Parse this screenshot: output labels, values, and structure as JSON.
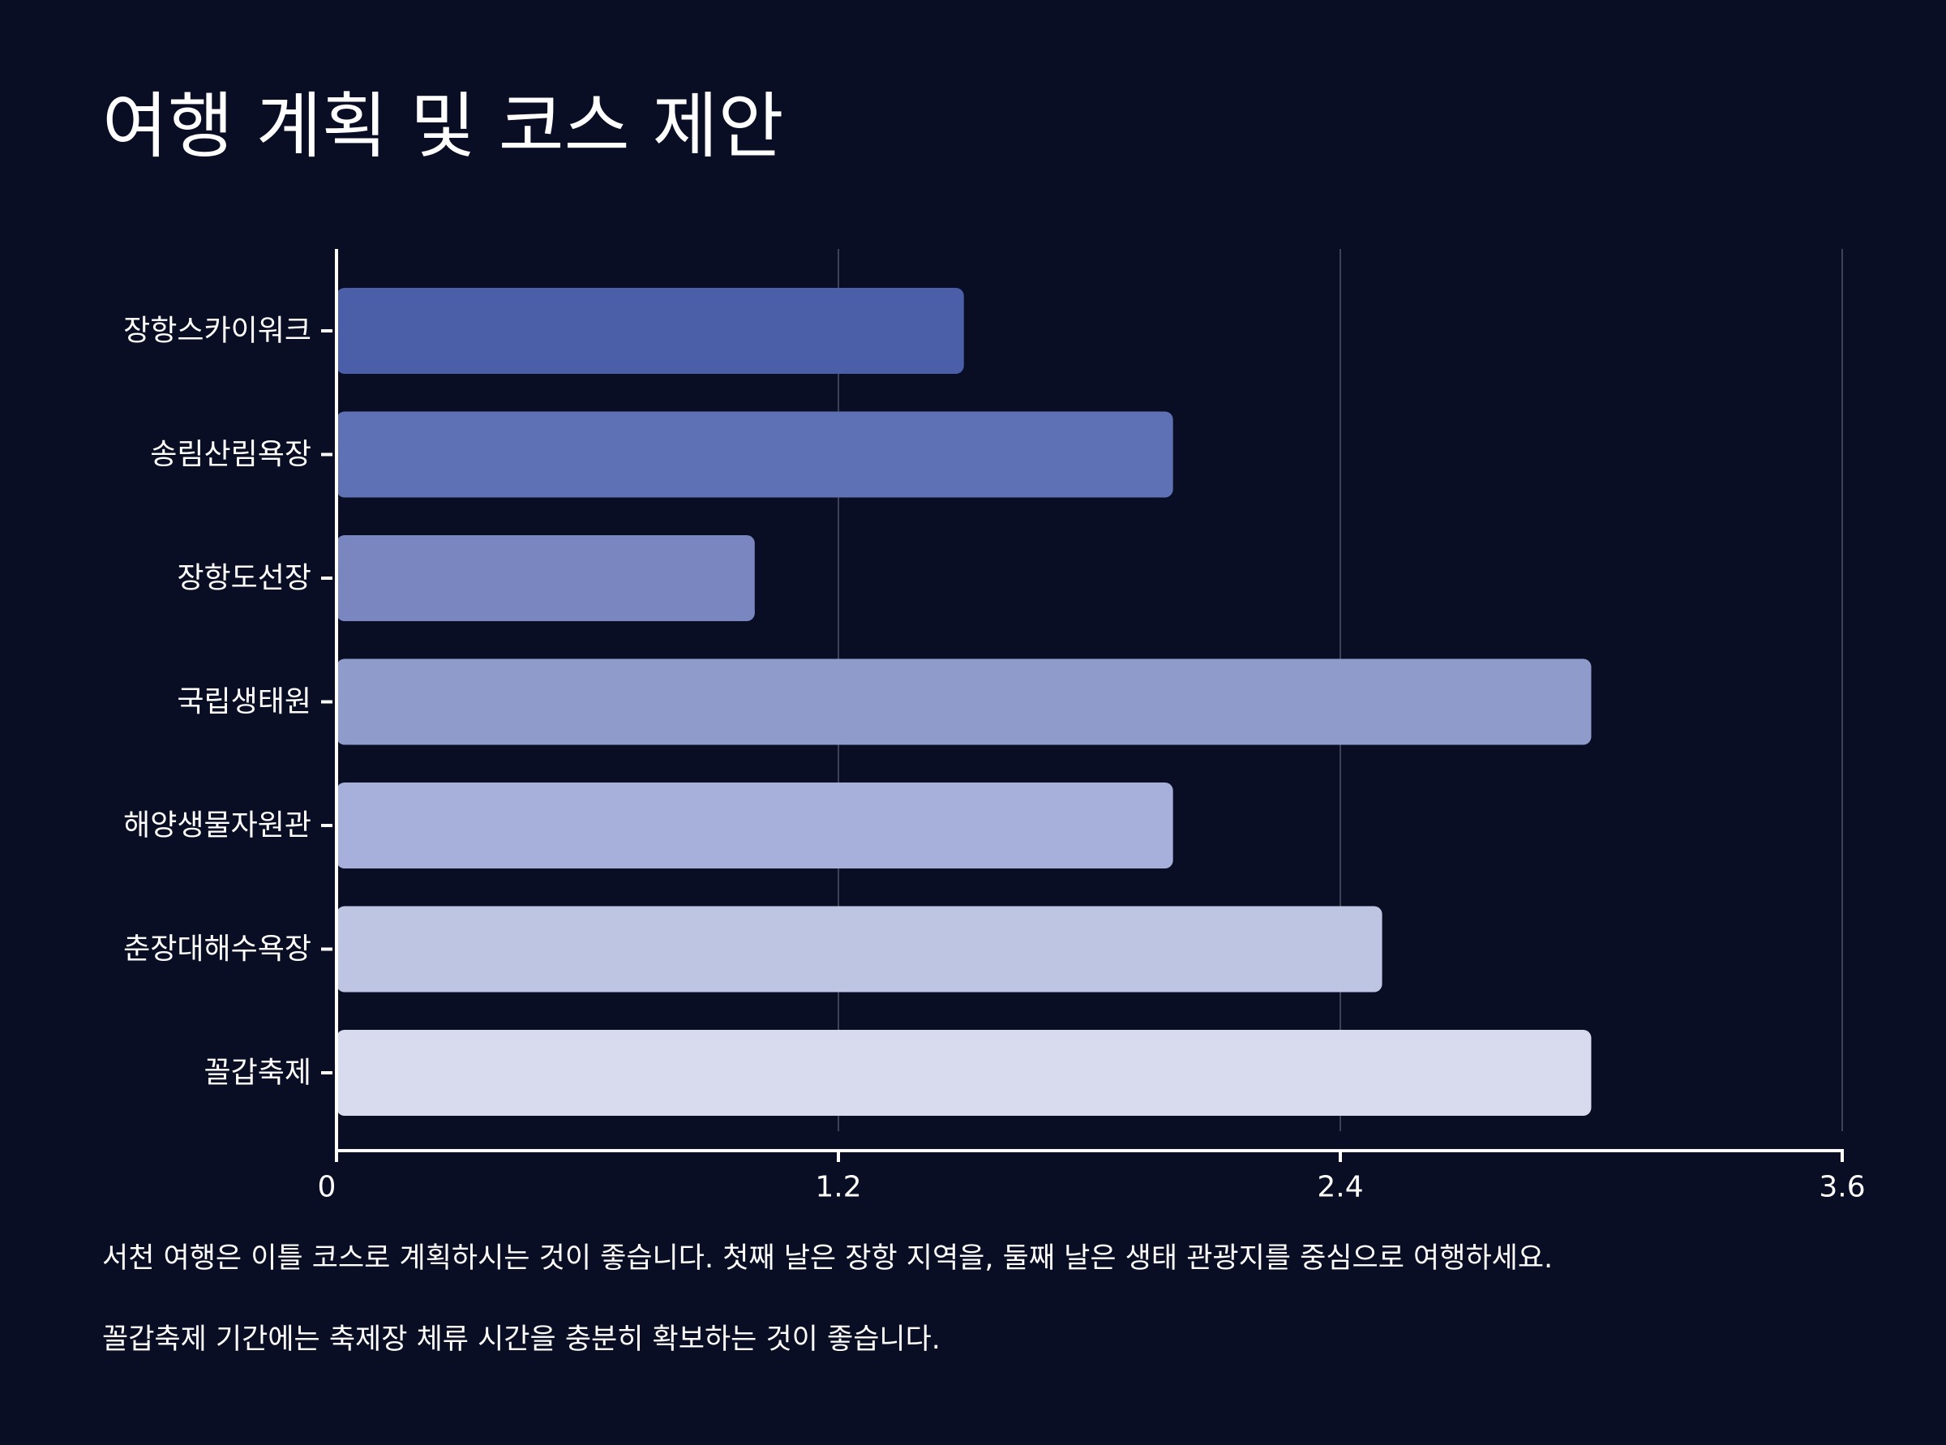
{
  "title": "여행 계획 및 코스 제안",
  "notes": [
    "서천 여행은 이틀 코스로 계획하시는 것이 좋습니다. 첫째 날은 장항 지역을, 둘째 날은 생태 관광지를 중심으로 여행하세요.",
    "꼴갑축제 기간에는 축제장 체류 시간을 충분히 확보하는 것이 좋습니다."
  ],
  "colors": {
    "background": "#090e24",
    "text": "#ffffff",
    "gridline": "#3d4257",
    "bars": [
      "#4b5ea8",
      "#5f71b5",
      "#7986c0",
      "#8f9bcb",
      "#a7b0db",
      "#bec5e2",
      "#d8dbed"
    ]
  },
  "chart_data": {
    "type": "bar",
    "orientation": "horizontal",
    "title": "",
    "xlabel": "",
    "ylabel": "",
    "categories": [
      "장항스카이워크",
      "송림산림욕장",
      "장항도선장",
      "국립생태원",
      "해양생물자원관",
      "춘장대해수욕장",
      "꼴갑축제"
    ],
    "values": [
      1.5,
      2.0,
      1.0,
      3.0,
      2.0,
      2.5,
      3.0
    ],
    "xlim": [
      0,
      3.6
    ],
    "xticks": [
      "0",
      "1.2",
      "2.4",
      "3.6"
    ],
    "xtick_values": [
      0,
      1.2,
      2.4,
      3.6
    ],
    "grid": "vertical",
    "legend": "none"
  }
}
